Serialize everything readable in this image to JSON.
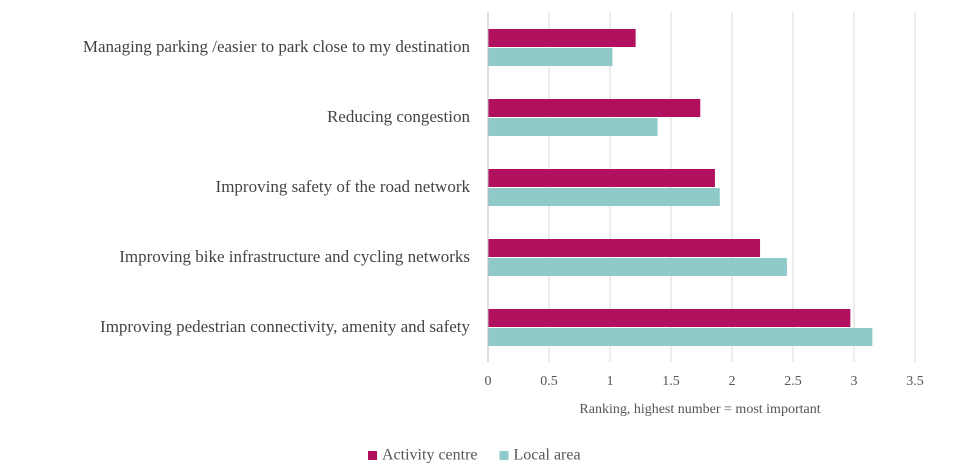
{
  "chart_data": {
    "type": "barh",
    "categories": [
      "Managing parking /easier to park close to my destination",
      "Reducing congestion",
      "Improving safety of the road network",
      "Improving bike infrastructure and cycling networks",
      "Improving pedestrian connectivity, amenity and safety"
    ],
    "series": [
      {
        "name": "Activity centre",
        "color": "#b0105e",
        "values": [
          1.21,
          1.74,
          1.86,
          2.23,
          2.97
        ]
      },
      {
        "name": "Local area",
        "color": "#8fc9c9",
        "values": [
          1.02,
          1.39,
          1.9,
          2.45,
          3.15
        ]
      }
    ],
    "xlabel": "Ranking, highest number = most important",
    "xlim": [
      0,
      3.5
    ],
    "xticks": [
      0,
      0.5,
      1,
      1.5,
      2,
      2.5,
      3,
      3.5
    ],
    "grid": true,
    "legend": "bottom"
  }
}
